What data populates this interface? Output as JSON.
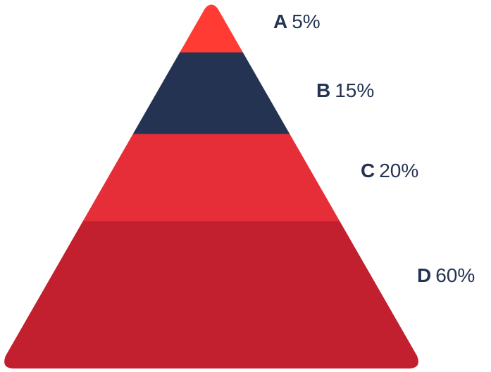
{
  "chart_data": {
    "type": "pyramid",
    "segments": [
      {
        "label": "A",
        "value": 5,
        "value_text": "5%",
        "color": "#FF3B34"
      },
      {
        "label": "B",
        "value": 15,
        "value_text": "15%",
        "color": "#243352"
      },
      {
        "label": "C",
        "value": 20,
        "value_text": "20%",
        "color": "#E62E38"
      },
      {
        "label": "D",
        "value": 60,
        "value_text": "60%",
        "color": "#C21F2F"
      }
    ],
    "label_color": "#243352",
    "legend": "none",
    "grid": false
  }
}
